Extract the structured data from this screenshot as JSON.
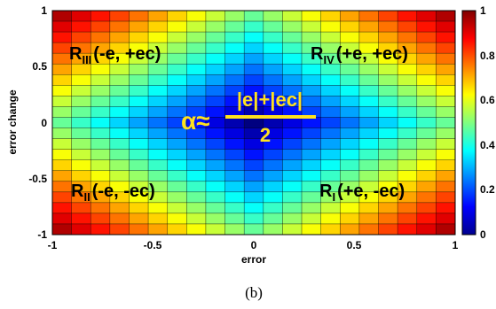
{
  "chart_data": {
    "type": "heatmap",
    "function": "|e|+|ec| over 2",
    "grid": {
      "nx": 21,
      "ny": 21
    },
    "xlabel": "error",
    "ylabel": "error change",
    "xlim": [
      -1,
      1
    ],
    "ylim": [
      -1,
      1
    ],
    "x_ticks": [
      "-1",
      "-0.5",
      "0",
      "0.5",
      "1"
    ],
    "y_ticks": [
      "1",
      "0.5",
      "0",
      "-0.5",
      "-1"
    ],
    "colorbar": {
      "range": [
        0,
        1
      ],
      "ticks": [
        "1",
        "0.8",
        "0.6",
        "0.4",
        "0.2",
        "0"
      ],
      "colormap": "jet"
    },
    "annotations": {
      "q1": {
        "main": "R",
        "sub": "III",
        "rest": "(-e, +ec)"
      },
      "q2": {
        "main": "R",
        "sub": "IV",
        "rest": "(+e, +ec)"
      },
      "q3": {
        "main": "R",
        "sub": "II",
        "rest": "(-e, -ec)"
      },
      "q4": {
        "main": "R",
        "sub": "I",
        "rest": "(+e, -ec)"
      },
      "formula": {
        "lhs": "α≈",
        "numerator": "|e|+|ec|",
        "denominator": "2"
      }
    },
    "formula_color": "#ffe21f"
  },
  "caption": "(b)"
}
